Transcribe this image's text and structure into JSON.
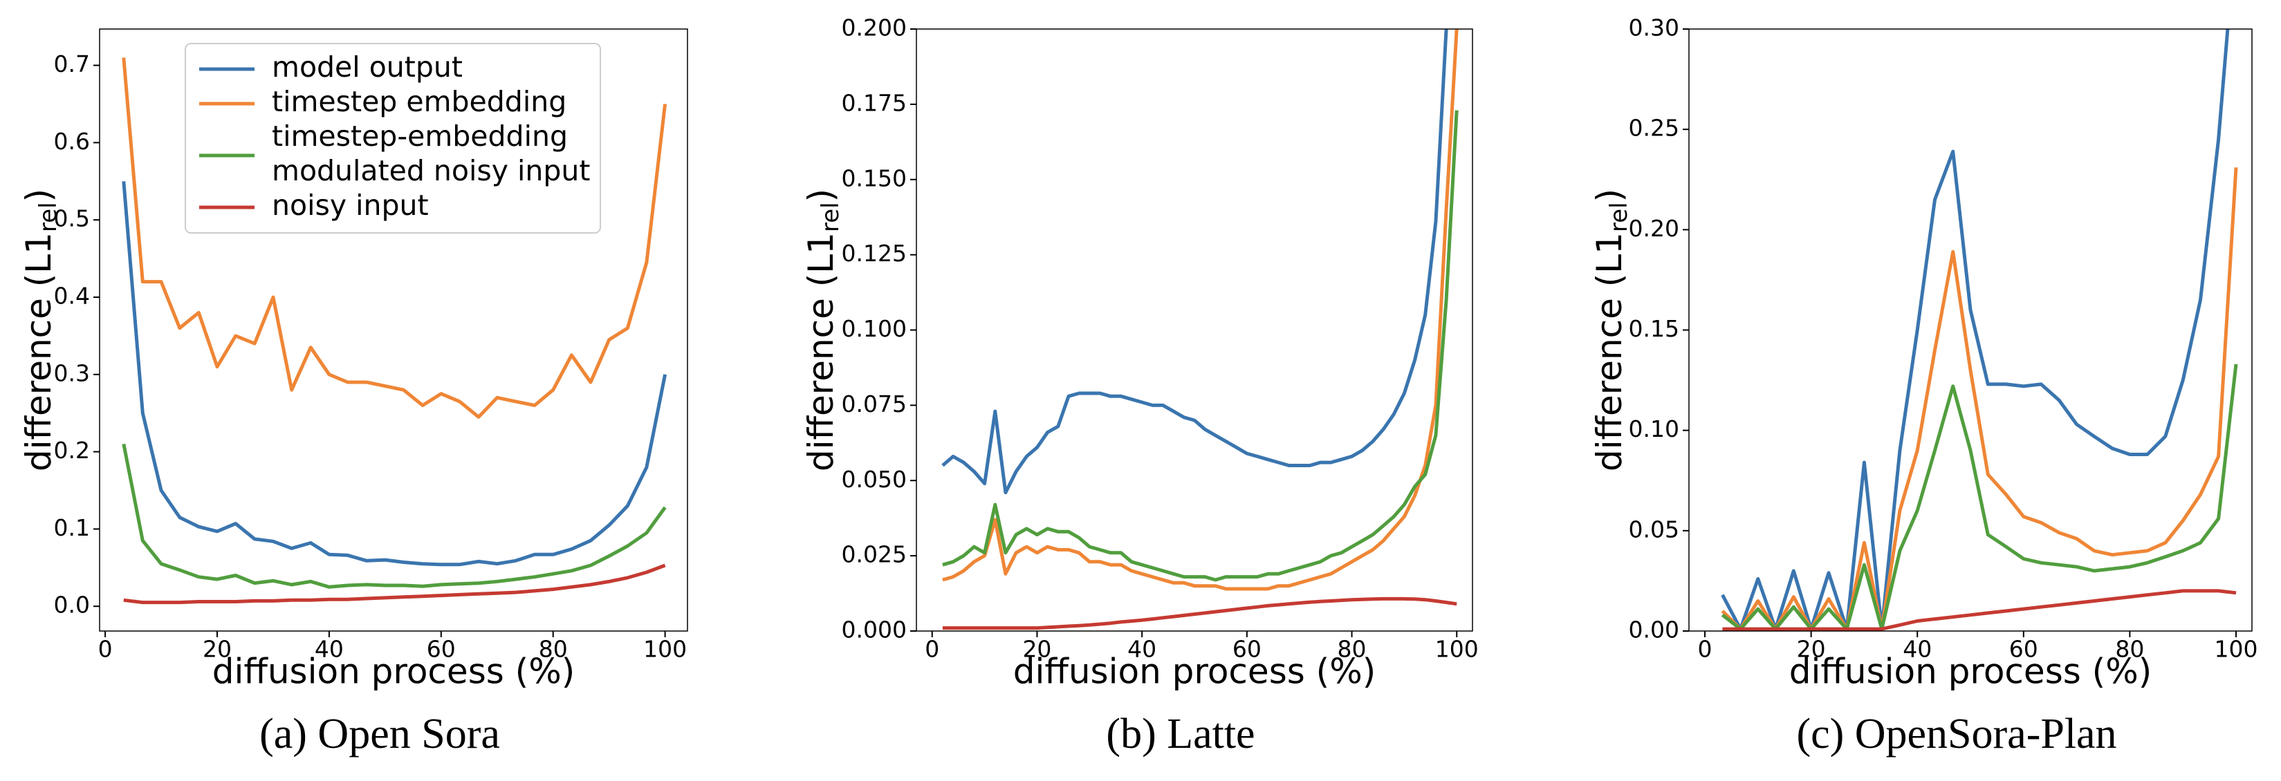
{
  "chart_data": [
    {
      "type": "line",
      "title": "(a) Open Sora",
      "xlabel": "diffusion process (%)",
      "ylabel": "difference (L1",
      "ylabel_sub": "rel",
      "ylabel_end": ")",
      "legend": "upper center",
      "x": [
        3.3,
        6.7,
        10,
        13.3,
        16.7,
        20,
        23.3,
        26.7,
        30,
        33.3,
        36.7,
        40,
        43.3,
        46.7,
        50,
        53.3,
        56.7,
        60,
        63.3,
        66.7,
        70,
        73.3,
        76.7,
        80,
        83.3,
        86.7,
        90,
        93.3,
        96.7,
        100
      ],
      "series": [
        {
          "name": "model output",
          "color": "#3a75af",
          "values": [
            0.55,
            0.25,
            0.15,
            0.115,
            0.103,
            0.097,
            0.107,
            0.087,
            0.084,
            0.075,
            0.082,
            0.067,
            0.066,
            0.059,
            0.06,
            0.057,
            0.055,
            0.054,
            0.054,
            0.058,
            0.055,
            0.059,
            0.067,
            0.067,
            0.074,
            0.085,
            0.105,
            0.13,
            0.18,
            0.3
          ]
        },
        {
          "name": "timestep embedding",
          "color": "#ef8636",
          "values": [
            0.71,
            0.42,
            0.42,
            0.36,
            0.38,
            0.31,
            0.35,
            0.34,
            0.4,
            0.28,
            0.335,
            0.3,
            0.29,
            0.29,
            0.285,
            0.28,
            0.26,
            0.275,
            0.265,
            0.245,
            0.27,
            0.265,
            0.26,
            0.28,
            0.325,
            0.29,
            0.345,
            0.36,
            0.445,
            0.65
          ]
        },
        {
          "name": "timestep-embedding\nmodulated noisy input",
          "color": "#519e3e",
          "values": [
            0.21,
            0.085,
            0.055,
            0.047,
            0.038,
            0.035,
            0.04,
            0.03,
            0.033,
            0.028,
            0.032,
            0.025,
            0.027,
            0.028,
            0.027,
            0.027,
            0.026,
            0.028,
            0.029,
            0.03,
            0.032,
            0.035,
            0.038,
            0.042,
            0.046,
            0.053,
            0.065,
            0.078,
            0.095,
            0.128
          ]
        },
        {
          "name": "noisy input",
          "color": "#c53a32",
          "values": [
            0.008,
            0.005,
            0.005,
            0.005,
            0.006,
            0.006,
            0.006,
            0.007,
            0.007,
            0.008,
            0.008,
            0.009,
            0.009,
            0.01,
            0.011,
            0.012,
            0.013,
            0.014,
            0.015,
            0.016,
            0.017,
            0.018,
            0.02,
            0.022,
            0.025,
            0.028,
            0.032,
            0.037,
            0.044,
            0.053
          ]
        }
      ],
      "xlim": [
        -1,
        104
      ],
      "xticks": [
        0,
        20,
        40,
        60,
        80,
        100
      ],
      "ylim": [
        -0.032,
        0.747
      ],
      "yticks": [
        {
          "value": 0,
          "label": "0.0"
        },
        0.1,
        0.2,
        0.3,
        0.4,
        0.5,
        0.6,
        0.7
      ]
    },
    {
      "type": "line",
      "title": "(b) Latte",
      "xlabel": "diffusion process (%)",
      "ylabel": "difference (L1",
      "ylabel_sub": "rel",
      "ylabel_end": ")",
      "x": [
        2,
        4,
        6,
        8,
        10,
        12,
        14,
        16,
        18,
        20,
        22,
        24,
        26,
        28,
        30,
        32,
        34,
        36,
        38,
        40,
        42,
        44,
        46,
        48,
        50,
        52,
        54,
        56,
        58,
        60,
        62,
        64,
        66,
        68,
        70,
        72,
        74,
        76,
        78,
        80,
        82,
        84,
        86,
        88,
        90,
        92,
        94,
        96,
        98,
        100
      ],
      "series": [
        {
          "color": "#3a75af",
          "values": [
            0.055,
            0.058,
            0.056,
            0.053,
            0.049,
            0.073,
            0.046,
            0.053,
            0.058,
            0.061,
            0.066,
            0.068,
            0.078,
            0.079,
            0.079,
            0.079,
            0.078,
            0.078,
            0.077,
            0.076,
            0.075,
            0.075,
            0.073,
            0.071,
            0.07,
            0.067,
            0.065,
            0.063,
            0.061,
            0.059,
            0.058,
            0.057,
            0.056,
            0.055,
            0.055,
            0.055,
            0.056,
            0.056,
            0.057,
            0.058,
            0.06,
            0.063,
            0.067,
            0.072,
            0.079,
            0.09,
            0.105,
            0.136,
            0.2,
            0.3
          ]
        },
        {
          "color": "#ef8636",
          "values": [
            0.017,
            0.018,
            0.02,
            0.023,
            0.025,
            0.037,
            0.019,
            0.026,
            0.028,
            0.026,
            0.028,
            0.027,
            0.027,
            0.026,
            0.023,
            0.023,
            0.022,
            0.022,
            0.02,
            0.019,
            0.018,
            0.017,
            0.016,
            0.016,
            0.015,
            0.015,
            0.015,
            0.014,
            0.014,
            0.014,
            0.014,
            0.014,
            0.015,
            0.015,
            0.016,
            0.017,
            0.018,
            0.019,
            0.021,
            0.023,
            0.025,
            0.027,
            0.03,
            0.034,
            0.038,
            0.045,
            0.055,
            0.075,
            0.14,
            0.2
          ]
        },
        {
          "color": "#519e3e",
          "values": [
            0.022,
            0.023,
            0.025,
            0.028,
            0.026,
            0.042,
            0.026,
            0.032,
            0.034,
            0.032,
            0.034,
            0.033,
            0.033,
            0.031,
            0.028,
            0.027,
            0.026,
            0.026,
            0.023,
            0.022,
            0.021,
            0.02,
            0.019,
            0.018,
            0.018,
            0.018,
            0.017,
            0.018,
            0.018,
            0.018,
            0.018,
            0.019,
            0.019,
            0.02,
            0.021,
            0.022,
            0.023,
            0.025,
            0.026,
            0.028,
            0.03,
            0.032,
            0.035,
            0.038,
            0.042,
            0.048,
            0.052,
            0.065,
            0.11,
            0.173
          ]
        },
        {
          "color": "#c53a32",
          "values": [
            0.001,
            0.001,
            0.001,
            0.001,
            0.001,
            0.001,
            0.001,
            0.001,
            0.001,
            0.001,
            0.0012,
            0.0014,
            0.0016,
            0.0018,
            0.002,
            0.0023,
            0.0026,
            0.003,
            0.0033,
            0.0036,
            0.004,
            0.0044,
            0.0048,
            0.0052,
            0.0056,
            0.006,
            0.0064,
            0.0068,
            0.0072,
            0.0076,
            0.008,
            0.0084,
            0.0087,
            0.009,
            0.0093,
            0.0096,
            0.0098,
            0.01,
            0.0102,
            0.0104,
            0.0105,
            0.0106,
            0.0107,
            0.0107,
            0.0107,
            0.0106,
            0.0104,
            0.01,
            0.0095,
            0.009
          ]
        }
      ],
      "xlim": [
        -3,
        103
      ],
      "xticks": [
        0,
        20,
        40,
        60,
        80,
        100
      ],
      "ylim": [
        0,
        0.2
      ],
      "yticks": [
        {
          "value": 0,
          "label": "0.000"
        },
        {
          "value": 0.025,
          "label": "0.025"
        },
        {
          "value": 0.05,
          "label": "0.050"
        },
        {
          "value": 0.075,
          "label": "0.075"
        },
        {
          "value": 0.1,
          "label": "0.100"
        },
        {
          "value": 0.125,
          "label": "0.125"
        },
        {
          "value": 0.15,
          "label": "0.150"
        },
        {
          "value": 0.175,
          "label": "0.175"
        },
        {
          "value": 0.2,
          "label": "0.200"
        }
      ]
    },
    {
      "type": "line",
      "title": "(c) OpenSora-Plan",
      "xlabel": "diffusion process (%)",
      "ylabel": "difference (L1",
      "ylabel_sub": "rel",
      "ylabel_end": ")",
      "x": [
        3.3,
        6.7,
        10,
        13.3,
        16.7,
        20,
        23.3,
        26.7,
        30,
        33.3,
        36.7,
        40,
        43.3,
        46.7,
        50,
        53.3,
        56.7,
        60,
        63.3,
        66.7,
        70,
        73.3,
        76.7,
        80,
        83.3,
        86.7,
        90,
        93.3,
        96.7,
        100
      ],
      "series": [
        {
          "color": "#3a75af",
          "values": [
            0.018,
            0.001,
            0.026,
            0.001,
            0.03,
            0.001,
            0.029,
            0.001,
            0.084,
            0.001,
            0.09,
            0.15,
            0.215,
            0.239,
            0.16,
            0.123,
            0.123,
            0.122,
            0.123,
            0.115,
            0.103,
            0.097,
            0.091,
            0.088,
            0.088,
            0.097,
            0.125,
            0.165,
            0.245,
            0.35
          ]
        },
        {
          "color": "#ef8636",
          "values": [
            0.01,
            0.001,
            0.015,
            0.001,
            0.017,
            0.001,
            0.016,
            0.001,
            0.044,
            0.001,
            0.06,
            0.09,
            0.14,
            0.189,
            0.13,
            0.078,
            0.068,
            0.057,
            0.054,
            0.049,
            0.046,
            0.04,
            0.038,
            0.039,
            0.04,
            0.044,
            0.055,
            0.068,
            0.087,
            0.231
          ]
        },
        {
          "color": "#519e3e",
          "values": [
            0.008,
            0.001,
            0.011,
            0.001,
            0.012,
            0.001,
            0.011,
            0.001,
            0.033,
            0.001,
            0.04,
            0.06,
            0.09,
            0.122,
            0.09,
            0.048,
            0.042,
            0.036,
            0.034,
            0.033,
            0.032,
            0.03,
            0.031,
            0.032,
            0.034,
            0.037,
            0.04,
            0.044,
            0.056,
            0.133
          ]
        },
        {
          "color": "#c53a32",
          "values": [
            0.001,
            0.001,
            0.001,
            0.001,
            0.001,
            0.001,
            0.001,
            0.001,
            0.001,
            0.001,
            0.003,
            0.005,
            0.006,
            0.007,
            0.008,
            0.009,
            0.01,
            0.011,
            0.012,
            0.013,
            0.014,
            0.015,
            0.016,
            0.017,
            0.018,
            0.019,
            0.02,
            0.02,
            0.02,
            0.019
          ]
        }
      ],
      "xlim": [
        -3,
        103
      ],
      "xticks": [
        0,
        20,
        40,
        60,
        80,
        100
      ],
      "ylim": [
        0,
        0.3
      ],
      "yticks": [
        {
          "value": 0,
          "label": "0.00"
        },
        {
          "value": 0.05,
          "label": "0.05"
        },
        {
          "value": 0.1,
          "label": "0.10"
        },
        {
          "value": 0.15,
          "label": "0.15"
        },
        {
          "value": 0.2,
          "label": "0.20"
        },
        {
          "value": 0.25,
          "label": "0.25"
        },
        {
          "value": 0.3,
          "label": "0.30"
        }
      ]
    }
  ]
}
